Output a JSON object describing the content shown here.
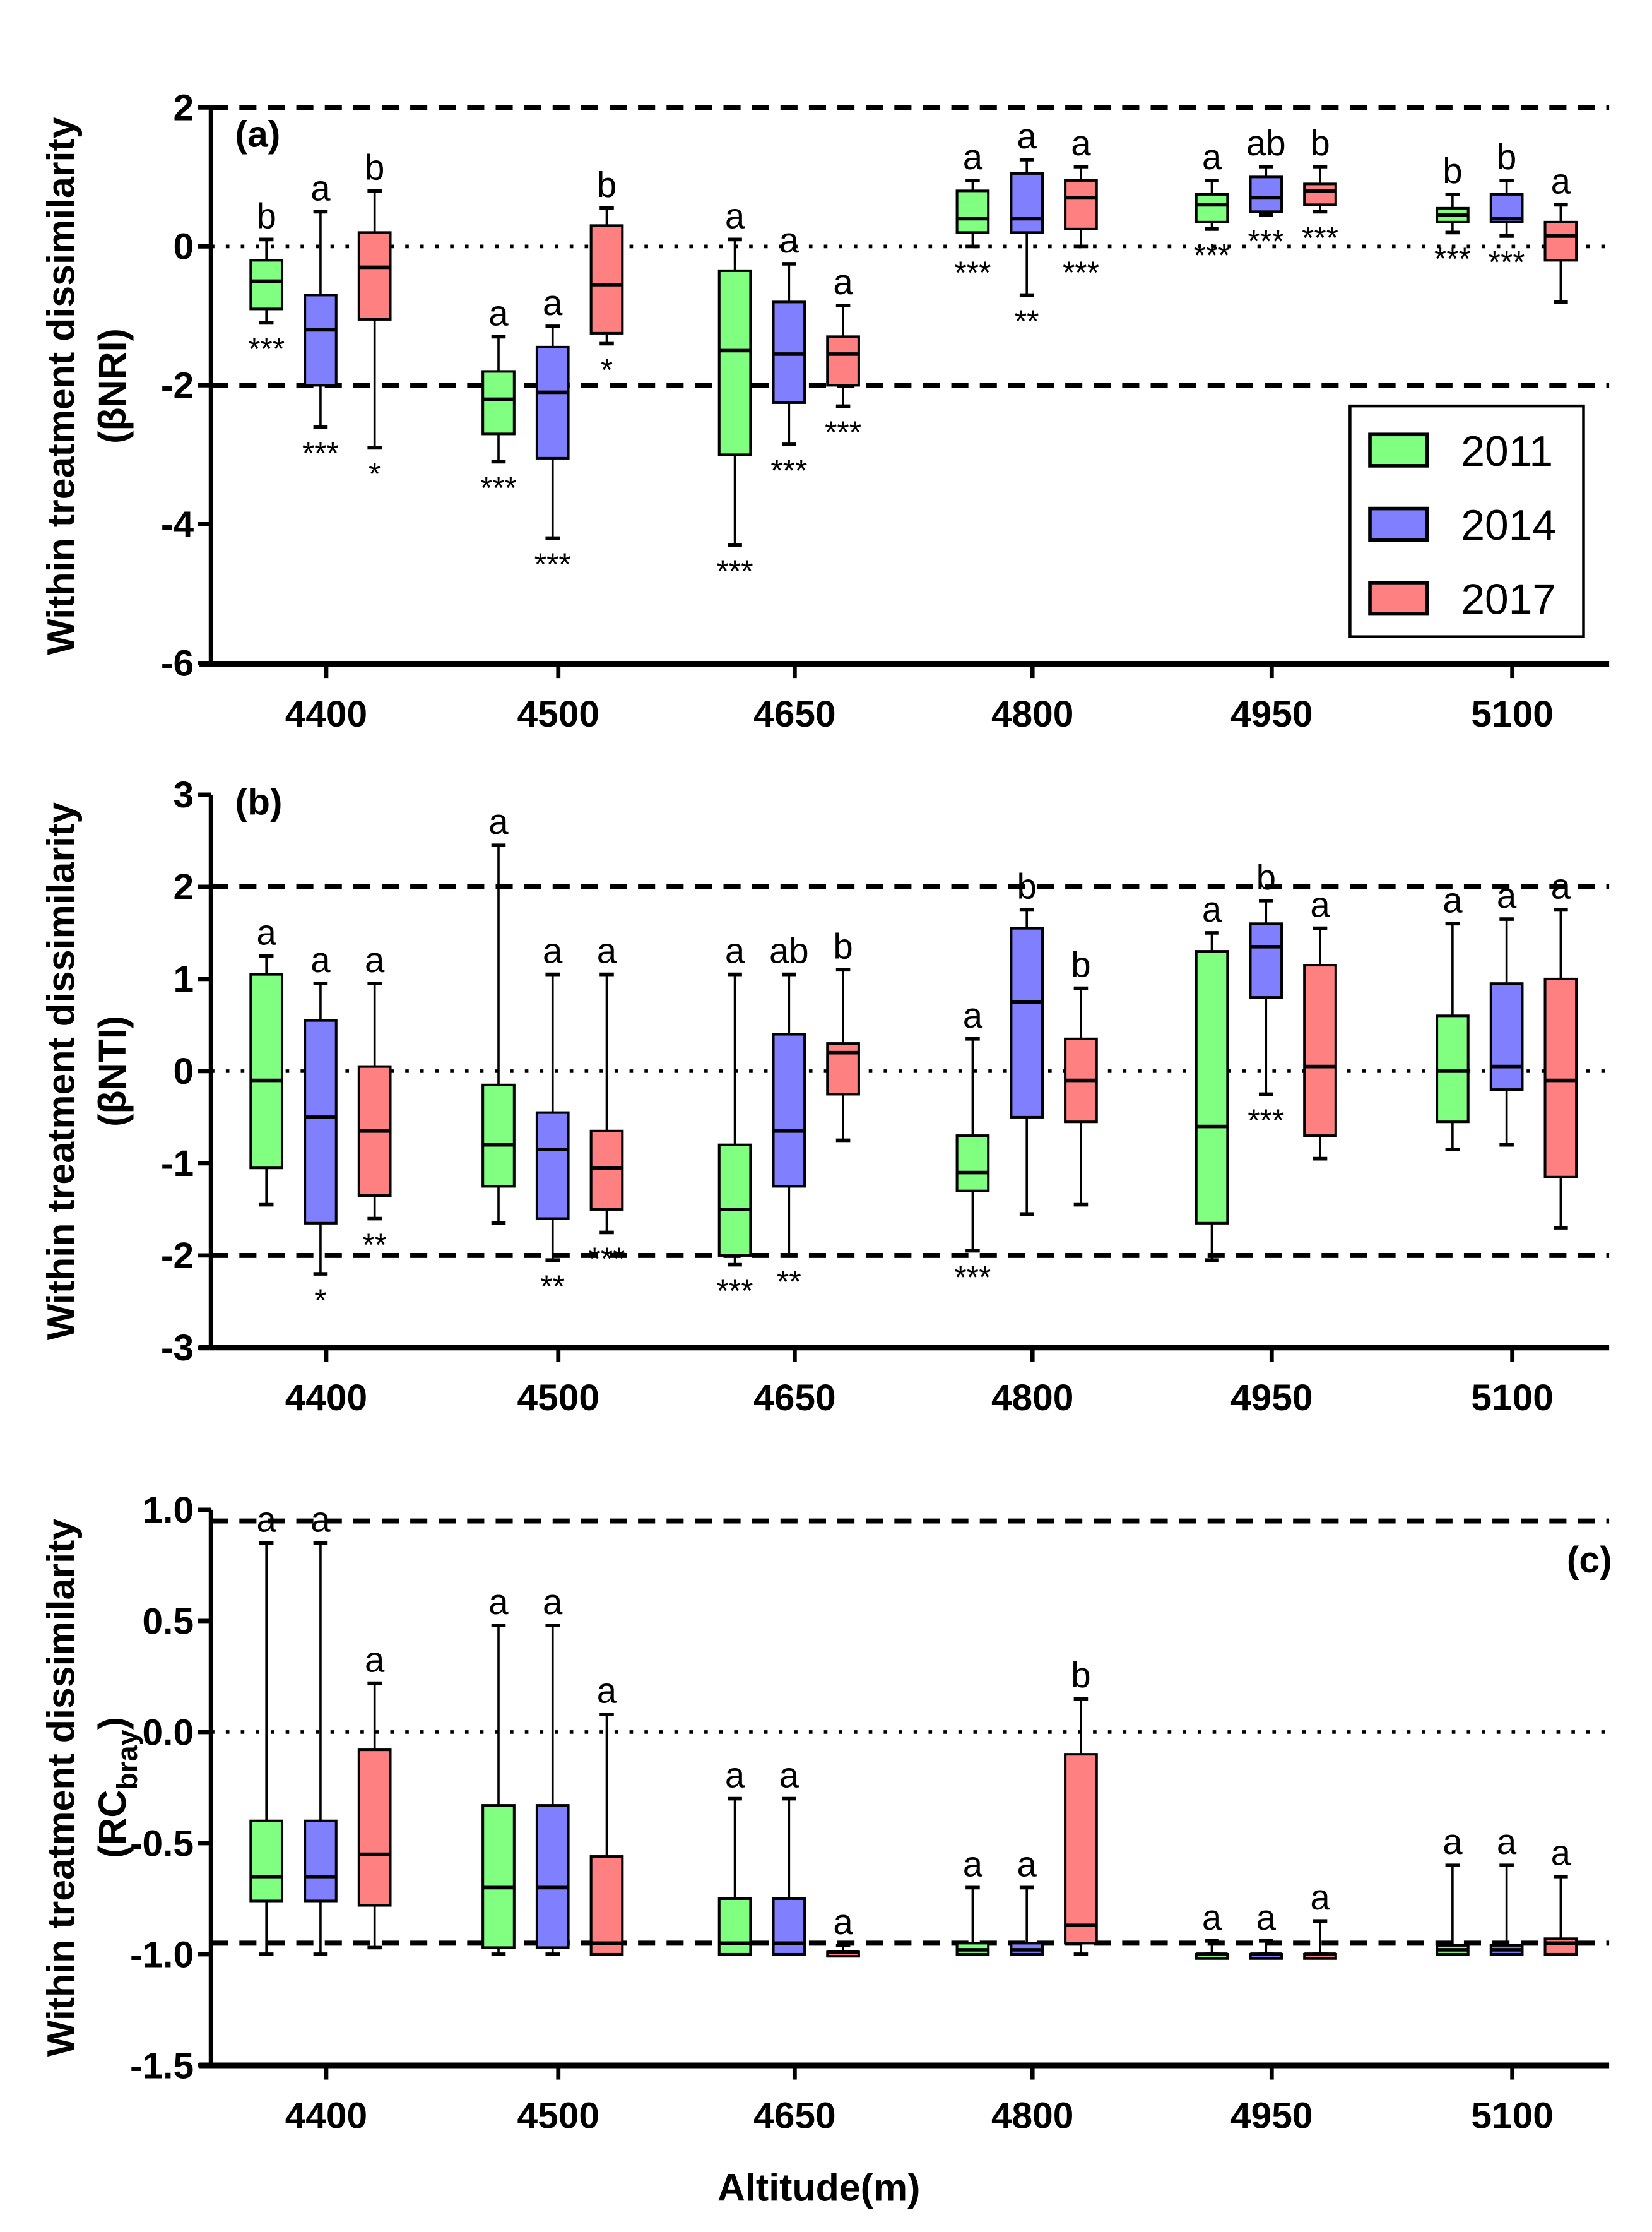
{
  "chart_data": [
    {
      "type": "box",
      "panel_label": "(a)",
      "ylabel": [
        "Within treatment dissimilarity",
        "(βNRI)"
      ],
      "ylim": [
        -6,
        2
      ],
      "yticks": [
        "2",
        "0",
        "-2",
        "-4",
        "-6"
      ],
      "ytick_values": [
        2,
        0,
        -2,
        -4,
        -6
      ],
      "reference_lines": [
        {
          "value": 2,
          "style": "dashed"
        },
        {
          "value": -2,
          "style": "dashed"
        },
        {
          "value": 0,
          "style": "dotted"
        }
      ],
      "categories": [
        "4400",
        "4500",
        "4650",
        "4800",
        "4950",
        "5100"
      ],
      "series": [
        {
          "name": "2011",
          "boxes": [
            [
              -1.1,
              -0.9,
              -0.5,
              -0.2,
              0.1
            ],
            [
              -3.1,
              -2.7,
              -2.2,
              -1.8,
              -1.3
            ],
            [
              -4.3,
              -3.0,
              -1.5,
              -0.35,
              0.1
            ],
            [
              0.0,
              0.2,
              0.4,
              0.8,
              0.95
            ],
            [
              0.25,
              0.35,
              0.6,
              0.75,
              0.95
            ],
            [
              0.2,
              0.35,
              0.45,
              0.55,
              0.75
            ]
          ],
          "letters": [
            "b",
            "a",
            "a",
            "a",
            "a",
            "b"
          ],
          "stars": [
            "***",
            "***",
            "***",
            "***",
            "***",
            "***"
          ]
        },
        {
          "name": "2014",
          "boxes": [
            [
              -2.6,
              -2.0,
              -1.2,
              -0.7,
              0.5
            ],
            [
              -4.2,
              -3.05,
              -2.1,
              -1.45,
              -1.15
            ],
            [
              -2.85,
              -2.25,
              -1.55,
              -0.8,
              -0.25
            ],
            [
              -0.7,
              0.2,
              0.4,
              1.05,
              1.25
            ],
            [
              0.45,
              0.5,
              0.7,
              1.0,
              1.15
            ],
            [
              0.15,
              0.35,
              0.4,
              0.75,
              0.95
            ]
          ],
          "letters": [
            "a",
            "a",
            "a",
            "a",
            "ab",
            "b"
          ],
          "stars": [
            "***",
            "***",
            "***",
            "**",
            "***",
            "***"
          ]
        },
        {
          "name": "2017",
          "boxes": [
            [
              -2.9,
              -1.05,
              -0.3,
              0.2,
              0.8
            ],
            [
              -1.4,
              -1.25,
              -0.55,
              0.3,
              0.55
            ],
            [
              -2.3,
              -2.0,
              -1.55,
              -1.3,
              -0.85
            ],
            [
              0.0,
              0.25,
              0.7,
              0.95,
              1.15
            ],
            [
              0.5,
              0.6,
              0.8,
              0.9,
              1.15
            ],
            [
              -0.8,
              -0.2,
              0.15,
              0.35,
              0.6
            ]
          ],
          "letters": [
            "b",
            "b",
            "a",
            "a",
            "b",
            "a"
          ],
          "stars": [
            "*",
            "*",
            "***",
            "***",
            "***",
            ""
          ]
        }
      ],
      "legend": {
        "placement": "bottom-right",
        "entries": [
          "2011",
          "2014",
          "2017"
        ]
      }
    },
    {
      "type": "box",
      "panel_label": "(b)",
      "ylabel": [
        "Within treatment dissimilarity",
        "(βNTI)"
      ],
      "ylim": [
        -3,
        3
      ],
      "yticks": [
        "3",
        "2",
        "1",
        "0",
        "-1",
        "-2",
        "-3"
      ],
      "ytick_values": [
        3,
        2,
        1,
        0,
        -1,
        -2,
        -3
      ],
      "reference_lines": [
        {
          "value": 2,
          "style": "dashed"
        },
        {
          "value": -2,
          "style": "dashed"
        },
        {
          "value": 0,
          "style": "dotted"
        }
      ],
      "categories": [
        "4400",
        "4500",
        "4650",
        "4800",
        "4950",
        "5100"
      ],
      "series": [
        {
          "name": "2011",
          "boxes": [
            [
              -1.45,
              -1.05,
              -0.1,
              1.05,
              1.25
            ],
            [
              -1.65,
              -1.25,
              -0.8,
              -0.15,
              2.45
            ],
            [
              -2.1,
              -2.0,
              -1.5,
              -0.8,
              1.05
            ],
            [
              -1.95,
              -1.3,
              -1.1,
              -0.7,
              0.35
            ],
            [
              -2.05,
              -1.65,
              -0.6,
              1.3,
              1.5
            ],
            [
              -0.85,
              -0.55,
              0.0,
              0.6,
              1.6
            ]
          ],
          "letters": [
            "a",
            "a",
            "a",
            "a",
            "a",
            "a"
          ],
          "stars": [
            "",
            "",
            "***",
            "***",
            "",
            ""
          ]
        },
        {
          "name": "2014",
          "boxes": [
            [
              -2.2,
              -1.65,
              -0.5,
              0.55,
              0.95
            ],
            [
              -2.05,
              -1.6,
              -0.85,
              -0.45,
              1.05
            ],
            [
              -2.0,
              -1.25,
              -0.65,
              0.4,
              1.05
            ],
            [
              -1.55,
              -0.5,
              0.75,
              1.55,
              1.75
            ],
            [
              -0.25,
              0.8,
              1.35,
              1.6,
              1.85
            ],
            [
              -0.8,
              -0.2,
              0.05,
              0.95,
              1.65
            ]
          ],
          "letters": [
            "a",
            "a",
            "ab",
            "b",
            "b",
            "a"
          ],
          "stars": [
            "*",
            "**",
            "**",
            "",
            "***",
            ""
          ]
        },
        {
          "name": "2017",
          "boxes": [
            [
              -1.6,
              -1.35,
              -0.65,
              0.05,
              0.95
            ],
            [
              -1.75,
              -1.5,
              -1.05,
              -0.65,
              1.05
            ],
            [
              -0.75,
              -0.25,
              0.2,
              0.3,
              1.1
            ],
            [
              -1.45,
              -0.55,
              -0.1,
              0.35,
              0.9
            ],
            [
              -0.95,
              -0.7,
              0.05,
              1.15,
              1.55
            ],
            [
              -1.7,
              -1.15,
              -0.1,
              1.0,
              1.75
            ]
          ],
          "letters": [
            "a",
            "a",
            "b",
            "b",
            "a",
            "a"
          ],
          "stars": [
            "**",
            "***",
            "",
            "",
            "",
            ""
          ]
        }
      ]
    },
    {
      "type": "box",
      "panel_label": "(c)",
      "ylabel": [
        "Within treatment dissimilarity",
        "(RC",
        "bray",
        ")"
      ],
      "xlabel": "Altitude(m)",
      "ylim": [
        -1.5,
        1.0
      ],
      "yticks": [
        "1.0",
        "0.5",
        "0.0",
        "-0.5",
        "-1.0",
        "-1.5"
      ],
      "ytick_values": [
        1.0,
        0.5,
        0.0,
        -0.5,
        -1.0,
        -1.5
      ],
      "reference_lines": [
        {
          "value": 0.95,
          "style": "dashed"
        },
        {
          "value": -0.95,
          "style": "dashed"
        },
        {
          "value": 0,
          "style": "dotted"
        }
      ],
      "categories": [
        "4400",
        "4500",
        "4650",
        "4800",
        "4950",
        "5100"
      ],
      "series": [
        {
          "name": "2011",
          "boxes": [
            [
              -1.0,
              -0.76,
              -0.65,
              -0.4,
              0.85
            ],
            [
              -1.0,
              -0.97,
              -0.7,
              -0.33,
              0.48
            ],
            [
              -1.0,
              -1.0,
              -0.95,
              -0.75,
              -0.3
            ],
            [
              -1.0,
              -1.0,
              -0.98,
              -0.95,
              -0.7
            ],
            [
              -1.0,
              -1.0,
              -1.0,
              -1.0,
              -0.94
            ],
            [
              -1.0,
              -1.0,
              -0.98,
              -0.96,
              -0.6
            ]
          ],
          "letters": [
            "a",
            "a",
            "a",
            "a",
            "a",
            "a"
          ],
          "stars": [
            "",
            "",
            "",
            "",
            "",
            ""
          ]
        },
        {
          "name": "2014",
          "boxes": [
            [
              -1.0,
              -0.76,
              -0.65,
              -0.4,
              0.85
            ],
            [
              -1.0,
              -0.97,
              -0.7,
              -0.33,
              0.48
            ],
            [
              -1.0,
              -1.0,
              -0.95,
              -0.75,
              -0.3
            ],
            [
              -1.0,
              -1.0,
              -0.98,
              -0.95,
              -0.7
            ],
            [
              -1.0,
              -1.0,
              -1.0,
              -1.0,
              -0.94
            ],
            [
              -1.0,
              -1.0,
              -0.98,
              -0.96,
              -0.6
            ]
          ],
          "letters": [
            "a",
            "a",
            "a",
            "a",
            "a",
            "a"
          ],
          "stars": [
            "",
            "",
            "",
            "",
            "",
            ""
          ]
        },
        {
          "name": "2017",
          "boxes": [
            [
              -0.97,
              -0.78,
              -0.55,
              -0.08,
              0.22
            ],
            [
              -1.0,
              -1.0,
              -0.95,
              -0.56,
              0.08
            ],
            [
              -1.0,
              -1.0,
              -0.99,
              -0.99,
              -0.96
            ],
            [
              -1.0,
              -0.95,
              -0.87,
              -0.1,
              0.15
            ],
            [
              -1.0,
              -1.0,
              -1.0,
              -1.0,
              -0.85
            ],
            [
              -1.0,
              -1.0,
              -0.95,
              -0.93,
              -0.65
            ]
          ],
          "letters": [
            "a",
            "a",
            "a",
            "b",
            "a",
            "a"
          ],
          "stars": [
            "",
            "",
            "",
            "",
            "",
            ""
          ]
        }
      ]
    }
  ],
  "colors": {
    "2011": "#80ff80",
    "2014": "#8080ff",
    "2017": "#ff8080"
  }
}
